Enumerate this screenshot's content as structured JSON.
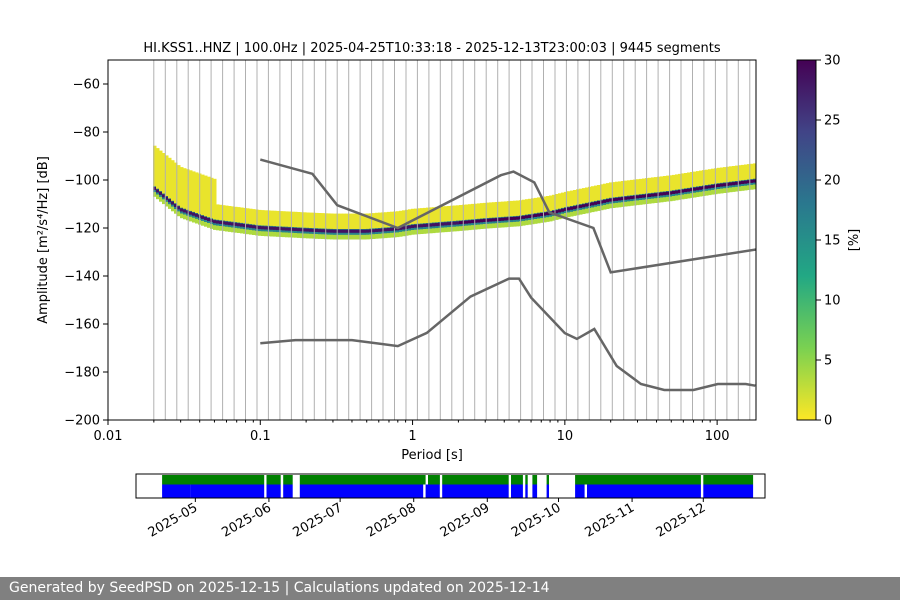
{
  "chart_data": [
    {
      "type": "heatmap",
      "title": "HI.KSS1..HNZ | 100.0Hz | 2025-04-25T10:33:18 - 2025-12-13T23:00:03 | 9445 segments",
      "xlabel": "Period [s]",
      "ylabel": "Amplitude [m²/s⁴/Hz] [dB]",
      "xscale": "log",
      "xlim": [
        0.01,
        180
      ],
      "ylim": [
        -200,
        -50
      ],
      "xticks": [
        0.01,
        0.1,
        1,
        10,
        100
      ],
      "xtick_labels": [
        "0.01",
        "0.1",
        "1",
        "10",
        "100"
      ],
      "yticks": [
        -200,
        -180,
        -160,
        -140,
        -120,
        -100,
        -80,
        -60
      ],
      "ytick_labels": [
        "−200",
        "−180",
        "−160",
        "−140",
        "−120",
        "−100",
        "−80",
        "−60"
      ],
      "grid": "vertical lines at PSD period bins",
      "colorbar": {
        "label": "[%]",
        "colormap": "viridis_r",
        "range": [
          0,
          30
        ],
        "ticks": [
          0,
          5,
          10,
          15,
          20,
          25,
          30
        ],
        "tick_labels": [
          "0",
          "5",
          "10",
          "15",
          "20",
          "25",
          "30"
        ]
      },
      "mode_curve": {
        "periods": [
          0.02,
          0.03,
          0.05,
          0.1,
          0.2,
          0.3,
          0.5,
          0.8,
          1,
          2,
          3,
          5,
          8,
          10,
          20,
          50,
          100,
          180
        ],
        "db": [
          -103,
          -112,
          -117,
          -119.5,
          -120.5,
          -121,
          -121,
          -120,
          -119,
          -117.5,
          -116.5,
          -115.5,
          -113.5,
          -112,
          -108,
          -105,
          -102,
          -100
        ]
      },
      "noise_models": {
        "high": {
          "periods": [
            0.1,
            0.22,
            0.32,
            0.8,
            3.8,
            4.6,
            6.3,
            7.9,
            15.4,
            20,
            354.8
          ],
          "db": [
            -91.5,
            -97.4,
            -110.5,
            -120,
            -98,
            -96.5,
            -101,
            -113.5,
            -120,
            -138.5,
            -126
          ]
        },
        "low": {
          "periods": [
            0.1,
            0.17,
            0.4,
            0.8,
            1.24,
            2.4,
            4.3,
            5,
            6,
            10,
            12,
            15.6,
            21.9,
            31.6,
            45,
            70,
            101,
            154,
            178
          ],
          "db": [
            -168,
            -166.7,
            -166.7,
            -169.2,
            -163.7,
            -148.6,
            -141.1,
            -141.1,
            -149,
            -163.8,
            -166.2,
            -162.1,
            -177.5,
            -185,
            -187.5,
            -187.5,
            -185,
            -185,
            -185.7
          ]
        },
        "line_color": "#666666"
      }
    },
    {
      "type": "timeline",
      "xaxis": "date",
      "range": [
        "2025-04-06",
        "2025-12-27"
      ],
      "tick_labels": [
        "2025-05",
        "2025-06",
        "2025-07",
        "2025-08",
        "2025-09",
        "2025-10",
        "2025-11",
        "2025-12"
      ],
      "tick_dates": [
        "2025-05-01",
        "2025-06-01",
        "2025-07-01",
        "2025-08-01",
        "2025-09-01",
        "2025-10-01",
        "2025-11-01",
        "2025-12-01"
      ],
      "rows": [
        {
          "name": "",
          "color": "#008000",
          "intervals": [
            [
              "2025-04-17",
              "2025-05-30"
            ],
            [
              "2025-05-31",
              "2025-06-06"
            ],
            [
              "2025-06-07",
              "2025-06-11"
            ],
            [
              "2025-06-14",
              "2025-08-06"
            ],
            [
              "2025-08-07",
              "2025-08-12"
            ],
            [
              "2025-08-13",
              "2025-09-10"
            ],
            [
              "2025-09-11",
              "2025-09-16"
            ],
            [
              "2025-09-17",
              "2025-09-18"
            ],
            [
              "2025-09-20",
              "2025-09-22"
            ],
            [
              "2025-09-26",
              "2025-09-27"
            ],
            [
              "2025-10-08",
              "2025-11-30"
            ],
            [
              "2025-12-01",
              "2025-12-22"
            ]
          ]
        },
        {
          "name": "",
          "color": "#0000ff",
          "intervals": [
            [
              "2025-04-17",
              "2025-04-29"
            ],
            [
              "2025-04-29",
              "2025-05-30"
            ],
            [
              "2025-05-31",
              "2025-06-06"
            ],
            [
              "2025-06-07",
              "2025-06-11"
            ],
            [
              "2025-06-14",
              "2025-08-05"
            ],
            [
              "2025-08-06",
              "2025-08-12"
            ],
            [
              "2025-08-13",
              "2025-09-10"
            ],
            [
              "2025-09-11",
              "2025-09-16"
            ],
            [
              "2025-09-17",
              "2025-09-18"
            ],
            [
              "2025-09-20",
              "2025-09-22"
            ],
            [
              "2025-09-26",
              "2025-09-27"
            ],
            [
              "2025-10-08",
              "2025-10-12"
            ],
            [
              "2025-10-13",
              "2025-11-30"
            ],
            [
              "2025-12-01",
              "2025-12-22"
            ]
          ]
        }
      ]
    }
  ],
  "footer": {
    "text": "Generated by SeedPSD on 2025-12-15 | Calculations updated on 2025-12-14"
  }
}
